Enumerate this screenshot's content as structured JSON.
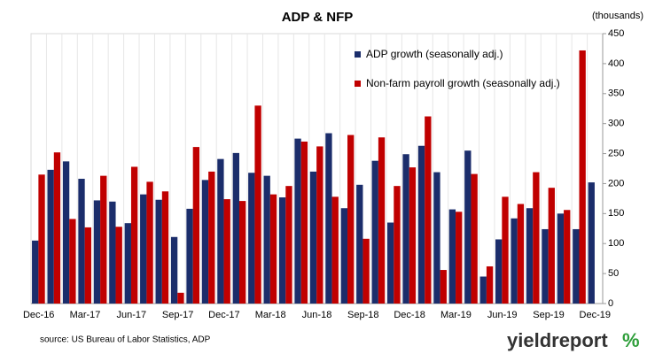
{
  "chart_data": {
    "type": "bar",
    "title": "ADP & NFP",
    "y_unit_label": "(thousands)",
    "source": "source: US Bureau of Labor Statistics, ADP",
    "logo": {
      "text": "yieldreport",
      "symbol": "%"
    },
    "categories": [
      "Dec-16",
      null,
      null,
      "Mar-17",
      null,
      null,
      "Jun-17",
      null,
      null,
      "Sep-17",
      null,
      null,
      "Dec-17",
      null,
      null,
      "Mar-18",
      null,
      null,
      "Jun-18",
      null,
      null,
      "Sep-18",
      null,
      null,
      "Dec-18",
      null,
      null,
      "Mar-19",
      null,
      null,
      "Jun-19",
      null,
      null,
      "Sep-19",
      null,
      null,
      "Dec-19"
    ],
    "series": [
      {
        "name": "ADP growth (seasonally adj.)",
        "color": "#1b2d6b",
        "values": [
          105,
          223,
          237,
          208,
          172,
          170,
          134,
          182,
          173,
          111,
          158,
          206,
          241,
          251,
          218,
          213,
          177,
          275,
          220,
          284,
          159,
          198,
          238,
          135,
          249,
          263,
          219,
          157,
          255,
          45,
          107,
          142,
          159,
          124,
          150,
          124,
          202
        ]
      },
      {
        "name": "Non-farm payroll growth (seasonally adj.)",
        "color": "#c00000",
        "values": [
          215,
          252,
          141,
          127,
          213,
          128,
          228,
          203,
          187,
          18,
          261,
          220,
          174,
          171,
          330,
          182,
          196,
          270,
          262,
          178,
          281,
          108,
          277,
          196,
          227,
          312,
          56,
          153,
          216,
          62,
          178,
          166,
          219,
          193,
          156,
          422,
          null
        ]
      }
    ],
    "ylim": [
      0,
      450
    ],
    "yticks": [
      0,
      50,
      100,
      150,
      200,
      250,
      300,
      350,
      400,
      450
    ],
    "yaxis_position": "right",
    "legend": "top"
  }
}
